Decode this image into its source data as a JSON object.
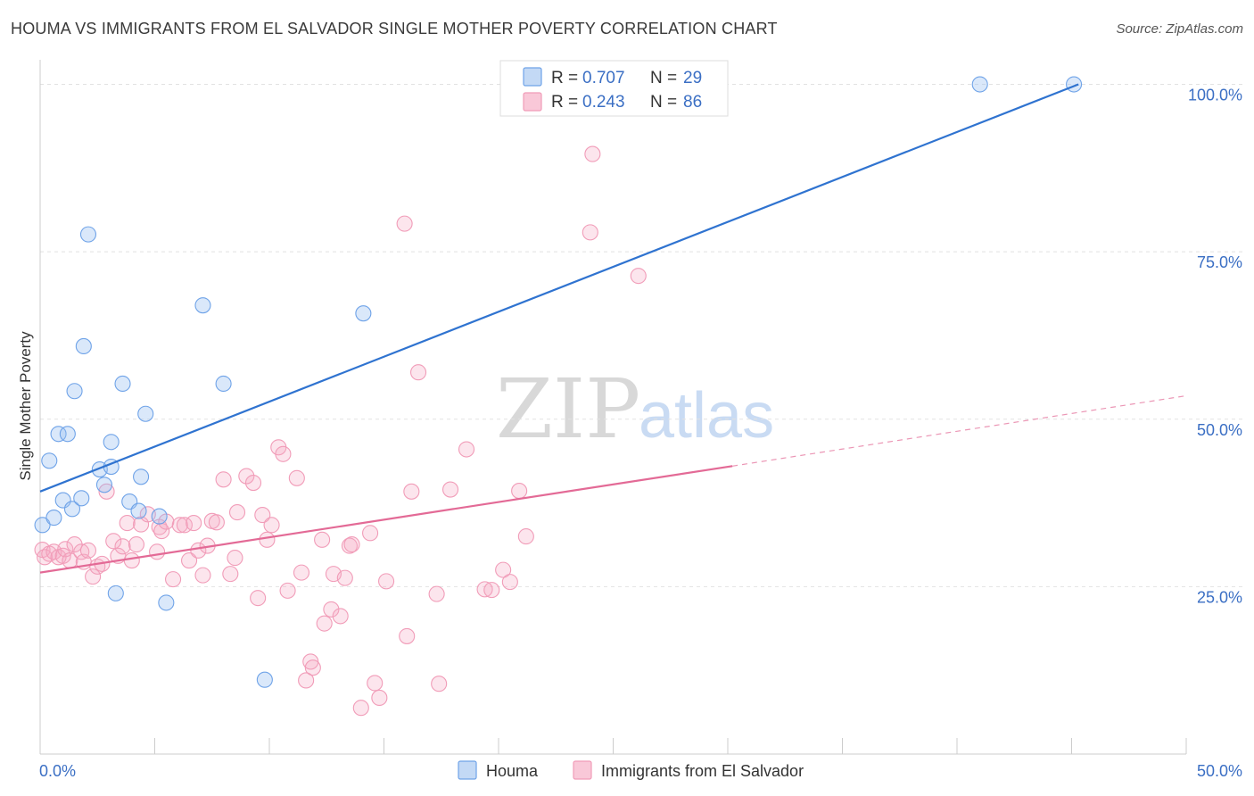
{
  "header": {
    "title": "HOUMA VS IMMIGRANTS FROM EL SALVADOR SINGLE MOTHER POVERTY CORRELATION CHART",
    "source": "Source: ZipAtlas.com"
  },
  "watermark": {
    "zip": "ZIP",
    "atlas": "atlas"
  },
  "colors": {
    "houma": "#6fa3e8",
    "houma_line": "#2f73d0",
    "salvador": "#f19cb8",
    "salvador_line": "#e36a96",
    "tick_label": "#3b6fc4"
  },
  "legend": {
    "rows": [
      {
        "r_label": "R =",
        "r_value": "0.707",
        "n_label": "N =",
        "n_value": "29"
      },
      {
        "r_label": "R =",
        "r_value": "0.243",
        "n_label": "N =",
        "n_value": "86"
      }
    ]
  },
  "chart_data": {
    "type": "scatter",
    "title": "HOUMA VS IMMIGRANTS FROM EL SALVADOR SINGLE MOTHER POVERTY CORRELATION CHART",
    "xlabel": "",
    "ylabel": "Single Mother Poverty",
    "xlim": [
      0,
      50
    ],
    "ylim": [
      0,
      105
    ],
    "x_tick_labels": [
      "0.0%",
      "50.0%"
    ],
    "y_ticks": [
      25,
      50,
      75,
      100
    ],
    "y_tick_labels": [
      "25.0%",
      "50.0%",
      "75.0%",
      "100.0%"
    ],
    "grid": true,
    "legend_position": "top-center",
    "series": [
      {
        "name": "Houma",
        "r": 0.707,
        "n": 29,
        "trend": {
          "x": [
            0,
            45.3
          ],
          "y": [
            39.2,
            100.0
          ],
          "dashed_to": null
        },
        "points": [
          [
            0.1,
            34.2
          ],
          [
            0.4,
            43.8
          ],
          [
            0.6,
            35.3
          ],
          [
            0.8,
            47.8
          ],
          [
            1.0,
            37.9
          ],
          [
            1.2,
            47.8
          ],
          [
            1.4,
            36.6
          ],
          [
            1.5,
            54.2
          ],
          [
            1.8,
            38.2
          ],
          [
            1.9,
            60.9
          ],
          [
            2.1,
            77.6
          ],
          [
            2.6,
            42.5
          ],
          [
            2.8,
            40.2
          ],
          [
            3.1,
            46.6
          ],
          [
            3.1,
            42.9
          ],
          [
            3.3,
            24.0
          ],
          [
            3.6,
            55.3
          ],
          [
            3.9,
            37.7
          ],
          [
            4.3,
            36.3
          ],
          [
            4.4,
            41.4
          ],
          [
            4.6,
            50.8
          ],
          [
            5.2,
            35.5
          ],
          [
            5.5,
            22.6
          ],
          [
            7.1,
            67.0
          ],
          [
            8.0,
            55.3
          ],
          [
            9.8,
            11.1
          ],
          [
            14.1,
            65.8
          ],
          [
            41.0,
            100.0
          ],
          [
            45.1,
            100.0
          ]
        ]
      },
      {
        "name": "Immigrants from El Salvador",
        "r": 0.243,
        "n": 86,
        "trend": {
          "x": [
            0,
            30.2
          ],
          "y": [
            27.1,
            43.0
          ],
          "dashed_to": [
            50,
            53.5
          ]
        },
        "points": [
          [
            0.1,
            30.5
          ],
          [
            0.2,
            29.4
          ],
          [
            0.4,
            29.9
          ],
          [
            0.6,
            30.2
          ],
          [
            0.8,
            29.4
          ],
          [
            1.0,
            29.6
          ],
          [
            1.1,
            30.6
          ],
          [
            1.3,
            28.9
          ],
          [
            1.5,
            31.3
          ],
          [
            1.8,
            30.2
          ],
          [
            1.9,
            28.7
          ],
          [
            2.1,
            30.4
          ],
          [
            2.3,
            26.5
          ],
          [
            2.5,
            28.0
          ],
          [
            2.7,
            28.4
          ],
          [
            2.9,
            39.2
          ],
          [
            3.2,
            31.8
          ],
          [
            3.4,
            29.6
          ],
          [
            3.6,
            31.0
          ],
          [
            3.8,
            34.5
          ],
          [
            4.0,
            28.9
          ],
          [
            4.2,
            31.3
          ],
          [
            4.4,
            34.3
          ],
          [
            4.7,
            35.8
          ],
          [
            5.1,
            30.2
          ],
          [
            5.2,
            33.9
          ],
          [
            5.3,
            33.3
          ],
          [
            5.5,
            34.7
          ],
          [
            5.8,
            26.1
          ],
          [
            6.1,
            34.2
          ],
          [
            6.3,
            34.2
          ],
          [
            6.5,
            28.9
          ],
          [
            6.7,
            34.5
          ],
          [
            6.9,
            30.4
          ],
          [
            7.1,
            26.7
          ],
          [
            7.3,
            31.1
          ],
          [
            7.5,
            34.8
          ],
          [
            7.7,
            34.6
          ],
          [
            8.0,
            41.0
          ],
          [
            8.3,
            26.9
          ],
          [
            8.5,
            29.3
          ],
          [
            8.6,
            36.1
          ],
          [
            9.0,
            41.5
          ],
          [
            9.3,
            40.5
          ],
          [
            9.5,
            23.3
          ],
          [
            9.7,
            35.7
          ],
          [
            9.9,
            32.0
          ],
          [
            10.1,
            34.2
          ],
          [
            10.4,
            45.8
          ],
          [
            10.6,
            44.8
          ],
          [
            10.8,
            24.4
          ],
          [
            11.2,
            41.2
          ],
          [
            11.4,
            27.1
          ],
          [
            11.6,
            11.0
          ],
          [
            11.8,
            13.8
          ],
          [
            11.9,
            12.9
          ],
          [
            12.3,
            32.0
          ],
          [
            12.4,
            19.5
          ],
          [
            12.7,
            21.6
          ],
          [
            12.8,
            26.9
          ],
          [
            13.1,
            20.6
          ],
          [
            13.3,
            26.3
          ],
          [
            13.5,
            31.1
          ],
          [
            13.6,
            31.3
          ],
          [
            14.0,
            6.9
          ],
          [
            14.4,
            33.0
          ],
          [
            14.6,
            10.6
          ],
          [
            14.8,
            8.4
          ],
          [
            15.1,
            25.8
          ],
          [
            15.9,
            79.2
          ],
          [
            16.0,
            17.6
          ],
          [
            16.2,
            39.2
          ],
          [
            16.5,
            57.0
          ],
          [
            17.3,
            23.9
          ],
          [
            17.4,
            10.5
          ],
          [
            17.9,
            39.5
          ],
          [
            18.6,
            45.5
          ],
          [
            19.4,
            24.6
          ],
          [
            19.7,
            24.5
          ],
          [
            20.2,
            27.5
          ],
          [
            20.5,
            25.7
          ],
          [
            20.9,
            39.3
          ],
          [
            21.2,
            32.5
          ],
          [
            24.0,
            77.9
          ],
          [
            24.1,
            89.6
          ],
          [
            26.1,
            71.4
          ]
        ]
      }
    ]
  },
  "bottom_legend": {
    "houma_label": "Houma",
    "salvador_label": "Immigrants from El Salvador"
  }
}
